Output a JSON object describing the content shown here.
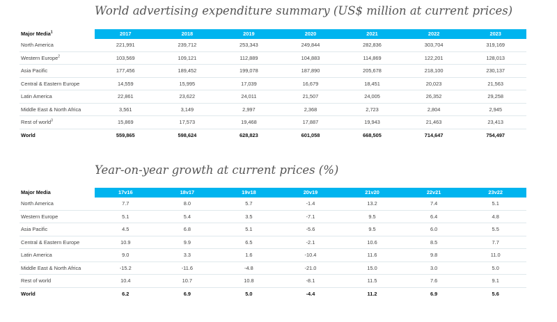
{
  "table1": {
    "title": "World advertising expenditure summary (US$ million at current prices)",
    "header_label": "Major Media",
    "header_label_note": "1",
    "columns": [
      "2017",
      "2018",
      "2019",
      "2020",
      "2021",
      "2022",
      "2023"
    ],
    "rows": [
      {
        "label": "North America",
        "note": "",
        "values": [
          "221,991",
          "239,712",
          "253,343",
          "249,844",
          "282,836",
          "303,704",
          "319,169"
        ]
      },
      {
        "label": "Western Europe",
        "note": "2",
        "values": [
          "103,569",
          "109,121",
          "112,889",
          "104,883",
          "114,869",
          "122,201",
          "128,013"
        ]
      },
      {
        "label": "Asia Pacific",
        "note": "",
        "values": [
          "177,456",
          "189,452",
          "199,078",
          "187,890",
          "205,678",
          "218,100",
          "230,137"
        ]
      },
      {
        "label": "Central & Eastern Europe",
        "note": "",
        "values": [
          "14,559",
          "15,995",
          "17,039",
          "16,679",
          "18,451",
          "20,023",
          "21,563"
        ]
      },
      {
        "label": "Latin America",
        "note": "",
        "values": [
          "22,861",
          "23,622",
          "24,011",
          "21,507",
          "24,005",
          "26,352",
          "29,258"
        ]
      },
      {
        "label": "Middle East & North Africa",
        "note": "",
        "values": [
          "3,561",
          "3,149",
          "2,997",
          "2,368",
          "2,723",
          "2,804",
          "2,945"
        ]
      },
      {
        "label": "Rest of world",
        "note": "3",
        "values": [
          "15,869",
          "17,573",
          "19,468",
          "17,887",
          "19,943",
          "21,463",
          "23,413"
        ]
      }
    ],
    "total": {
      "label": "World",
      "values": [
        "559,865",
        "598,624",
        "628,823",
        "601,058",
        "668,505",
        "714,647",
        "754,497"
      ]
    }
  },
  "table2": {
    "title": "Year-on-year growth at current prices (%)",
    "header_label": "Major Media",
    "columns": [
      "17v16",
      "18v17",
      "19v18",
      "20v19",
      "21v20",
      "22v21",
      "23v22"
    ],
    "rows": [
      {
        "label": "North America",
        "values": [
          "7.7",
          "8.0",
          "5.7",
          "-1.4",
          "13.2",
          "7.4",
          "5.1"
        ]
      },
      {
        "label": "Western Europe",
        "values": [
          "5.1",
          "5.4",
          "3.5",
          "-7.1",
          "9.5",
          "6.4",
          "4.8"
        ]
      },
      {
        "label": "Asia Pacific",
        "values": [
          "4.5",
          "6.8",
          "5.1",
          "-5.6",
          "9.5",
          "6.0",
          "5.5"
        ]
      },
      {
        "label": "Central & Eastern Europe",
        "values": [
          "10.9",
          "9.9",
          "6.5",
          "-2.1",
          "10.6",
          "8.5",
          "7.7"
        ]
      },
      {
        "label": "Latin America",
        "values": [
          "9.0",
          "3.3",
          "1.6",
          "-10.4",
          "11.6",
          "9.8",
          "11.0"
        ]
      },
      {
        "label": "Middle East & North Africa",
        "values": [
          "-15.2",
          "-11.6",
          "-4.8",
          "-21.0",
          "15.0",
          "3.0",
          "5.0"
        ]
      },
      {
        "label": "Rest of world",
        "values": [
          "10.4",
          "10.7",
          "10.8",
          "-8.1",
          "11.5",
          "7.6",
          "9.1"
        ]
      }
    ],
    "total": {
      "label": "World",
      "values": [
        "6.2",
        "6.9",
        "5.0",
        "-4.4",
        "11.2",
        "6.9",
        "5.6"
      ]
    }
  },
  "colors": {
    "header_bg": "#00b4ef",
    "header_text": "#ffffff",
    "title_text": "#555555"
  }
}
